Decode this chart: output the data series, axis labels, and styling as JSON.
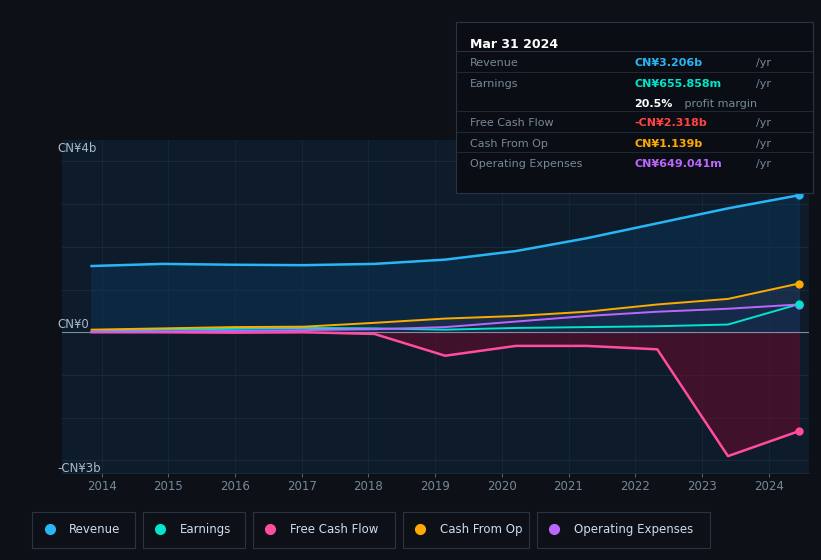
{
  "background_color": "#0d1117",
  "plot_bg_color": "#0d1b2a",
  "ylabel_top": "CN¥4b",
  "ylabel_bottom": "-CN¥3b",
  "ylabel_zero": "CN¥0",
  "x_labels": [
    "2014",
    "2015",
    "2016",
    "2017",
    "2018",
    "2019",
    "2020",
    "2021",
    "2022",
    "2023",
    "2024"
  ],
  "legend_items": [
    {
      "label": "Revenue",
      "color": "#29b6f6"
    },
    {
      "label": "Earnings",
      "color": "#00e5cc"
    },
    {
      "label": "Free Cash Flow",
      "color": "#ff4d9e"
    },
    {
      "label": "Cash From Op",
      "color": "#ffaa00"
    },
    {
      "label": "Operating Expenses",
      "color": "#bb66ff"
    }
  ],
  "tooltip": {
    "date": "Mar 31 2024",
    "revenue_label": "Revenue",
    "revenue_value": "CN¥3.206b",
    "revenue_color": "#29b6f6",
    "earnings_label": "Earnings",
    "earnings_value": "CN¥655.858m",
    "earnings_color": "#00e5cc",
    "margin_value": "20.5%",
    "margin_text": " profit margin",
    "fcf_label": "Free Cash Flow",
    "fcf_value": "-CN¥2.318b",
    "fcf_color": "#ff4444",
    "cashop_label": "Cash From Op",
    "cashop_value": "CN¥1.139b",
    "cashop_color": "#ffaa00",
    "opex_label": "Operating Expenses",
    "opex_value": "CN¥649.041m",
    "opex_color": "#bb66ff"
  },
  "revenue": [
    1.55,
    1.6,
    1.58,
    1.57,
    1.6,
    1.7,
    1.9,
    2.2,
    2.55,
    2.9,
    3.206
  ],
  "earnings": [
    0.02,
    0.06,
    0.08,
    0.1,
    0.09,
    0.06,
    0.1,
    0.12,
    0.14,
    0.18,
    0.656
  ],
  "free_cash_flow": [
    0.0,
    0.0,
    -0.01,
    0.0,
    -0.04,
    -0.55,
    -0.32,
    -0.32,
    -0.4,
    -2.9,
    -2.318
  ],
  "cash_from_op": [
    0.06,
    0.09,
    0.12,
    0.13,
    0.22,
    0.32,
    0.38,
    0.48,
    0.65,
    0.78,
    1.139
  ],
  "operating_expenses": [
    0.01,
    0.02,
    0.03,
    0.05,
    0.07,
    0.12,
    0.25,
    0.38,
    0.48,
    0.55,
    0.649
  ],
  "revenue_color": "#29b6f6",
  "earnings_color": "#00e5cc",
  "fcf_color": "#ff4d9e",
  "cashop_color": "#ffaa00",
  "opex_color": "#bb66ff",
  "ylim": [
    -3.3,
    4.5
  ],
  "xlim_start": 2013.4,
  "xlim_end": 2024.6,
  "x_tick_pos": [
    2014,
    2015,
    2016,
    2017,
    2018,
    2019,
    2020,
    2021,
    2022,
    2023,
    2024
  ]
}
